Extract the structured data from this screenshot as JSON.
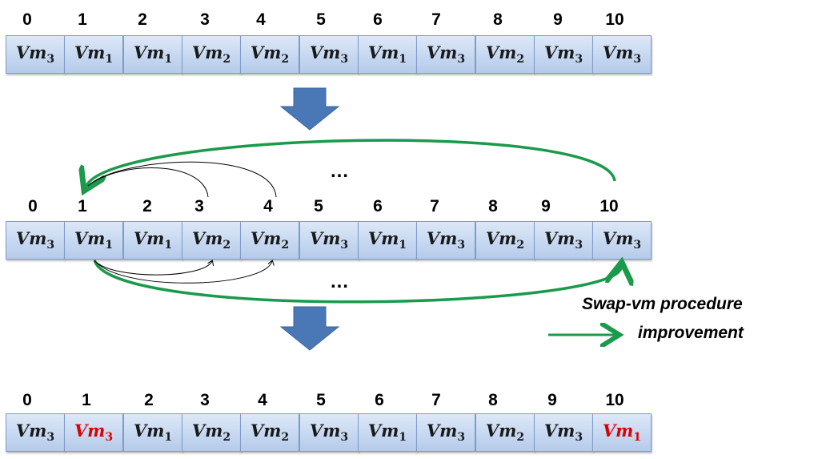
{
  "rows": [
    {
      "indices": [
        "0",
        "1",
        "2",
        "3",
        "4",
        "5",
        "6",
        "7",
        "8",
        "9",
        "10"
      ],
      "cells": [
        {
          "base": "Vm",
          "sub": "3"
        },
        {
          "base": "Vm",
          "sub": "1"
        },
        {
          "base": "Vm",
          "sub": "1"
        },
        {
          "base": "Vm",
          "sub": "2"
        },
        {
          "base": "Vm",
          "sub": "2"
        },
        {
          "base": "Vm",
          "sub": "3"
        },
        {
          "base": "Vm",
          "sub": "1"
        },
        {
          "base": "Vm",
          "sub": "3"
        },
        {
          "base": "Vm",
          "sub": "2"
        },
        {
          "base": "Vm",
          "sub": "3"
        },
        {
          "base": "Vm",
          "sub": "3"
        }
      ]
    },
    {
      "indices": [
        "0",
        "1",
        "2",
        "3",
        "4",
        "5",
        "6",
        "7",
        "8",
        "9",
        "10"
      ],
      "cells": [
        {
          "base": "Vm",
          "sub": "3"
        },
        {
          "base": "Vm",
          "sub": "1"
        },
        {
          "base": "Vm",
          "sub": "1"
        },
        {
          "base": "Vm",
          "sub": "2"
        },
        {
          "base": "Vm",
          "sub": "2"
        },
        {
          "base": "Vm",
          "sub": "3"
        },
        {
          "base": "Vm",
          "sub": "1"
        },
        {
          "base": "Vm",
          "sub": "3"
        },
        {
          "base": "Vm",
          "sub": "2"
        },
        {
          "base": "Vm",
          "sub": "3"
        },
        {
          "base": "Vm",
          "sub": "3"
        }
      ]
    },
    {
      "indices": [
        "0",
        "1",
        "2",
        "3",
        "4",
        "5",
        "6",
        "7",
        "8",
        "9",
        "10"
      ],
      "cells": [
        {
          "base": "Vm",
          "sub": "3"
        },
        {
          "base": "Vm",
          "sub": "3",
          "highlight": "red"
        },
        {
          "base": "Vm",
          "sub": "1"
        },
        {
          "base": "Vm",
          "sub": "2"
        },
        {
          "base": "Vm",
          "sub": "2"
        },
        {
          "base": "Vm",
          "sub": "3"
        },
        {
          "base": "Vm",
          "sub": "1"
        },
        {
          "base": "Vm",
          "sub": "3"
        },
        {
          "base": "Vm",
          "sub": "2"
        },
        {
          "base": "Vm",
          "sub": "3"
        },
        {
          "base": "Vm",
          "sub": "1",
          "highlight": "red"
        }
      ]
    }
  ],
  "ellipsis": "…",
  "legend": {
    "line1": "Swap-vm procedure",
    "line2": "improvement",
    "arrow_color": "#1a9a4a"
  },
  "colors": {
    "down_arrow": "#4a78b6",
    "swap_arrow": "#1a9a4a",
    "highlight_text": "#e00000",
    "cell_border": "#7f9bc8"
  }
}
